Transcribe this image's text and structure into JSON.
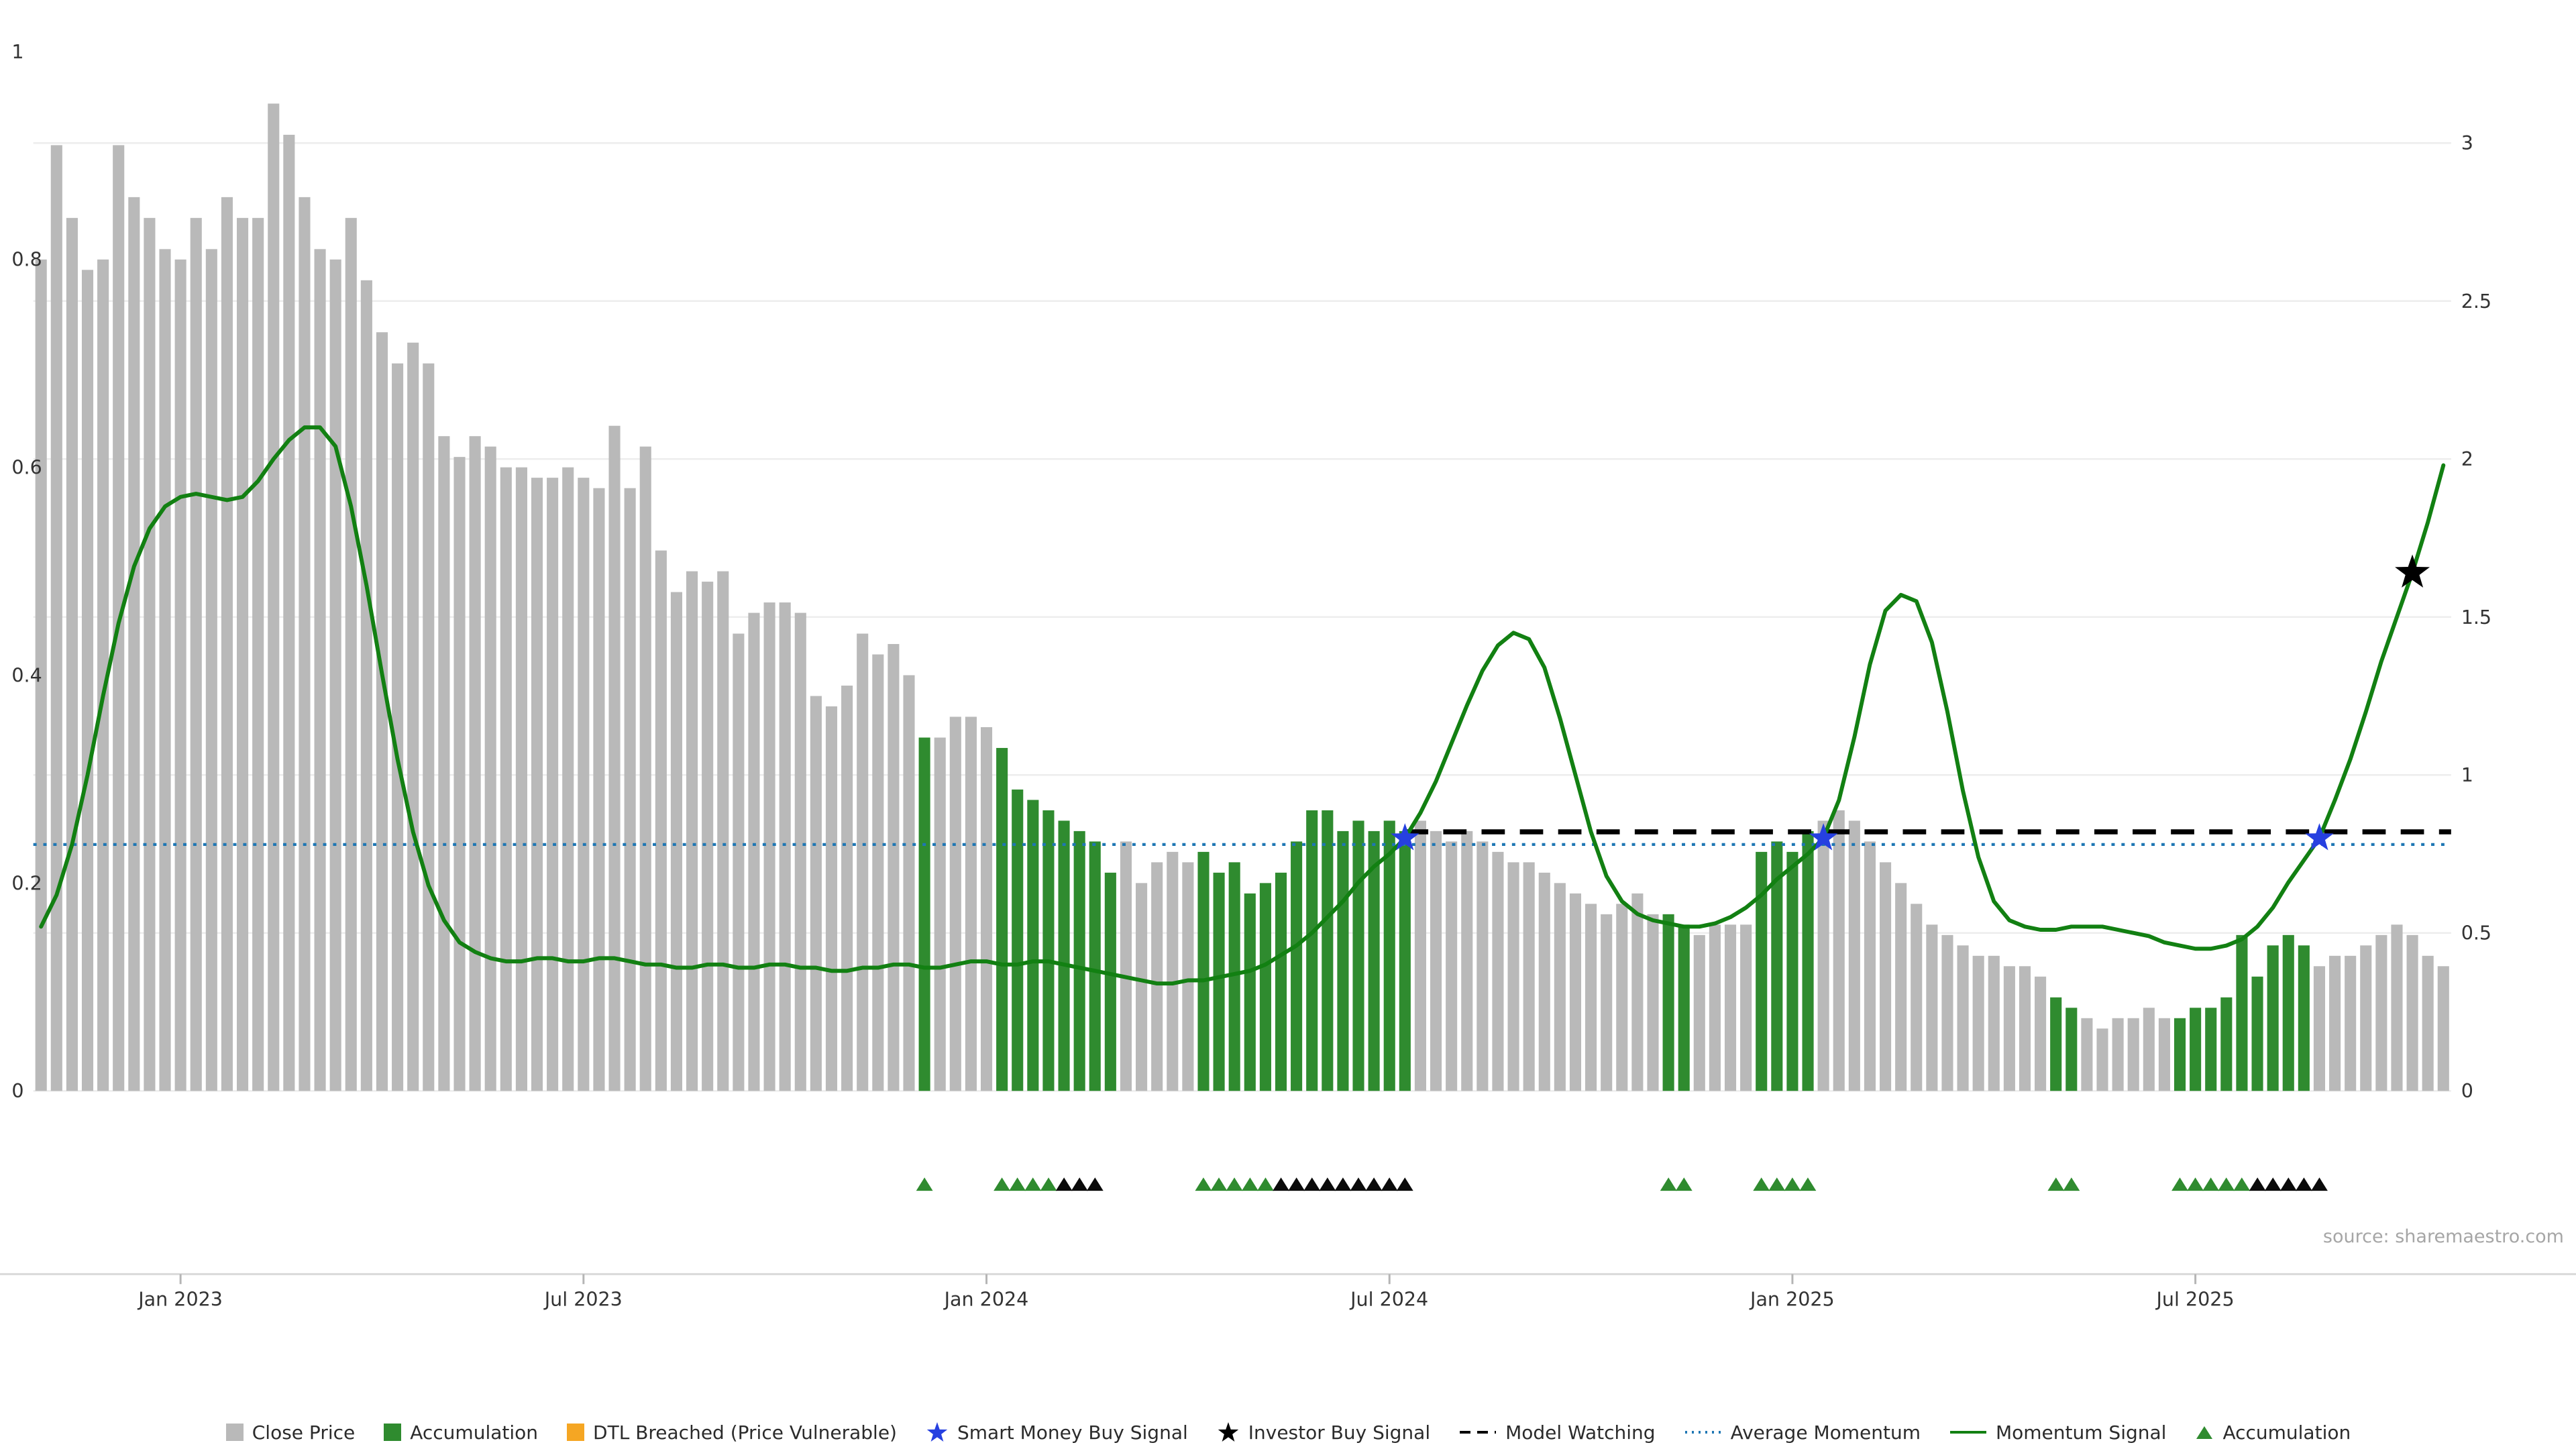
{
  "source": "source: sharemaestro.com",
  "colors": {
    "close_price": "#b9b9b9",
    "accumulation": "#2f8b2f",
    "dtl_breached": "#f5a623",
    "smart_money": "#2640e0",
    "investor": "#000000",
    "model_watching": "#000000",
    "average_momentum": "#1f77b4",
    "momentum_signal": "#128012",
    "marker_black": "#0a0a0a",
    "grid": "#ededed",
    "axis_text": "#333333",
    "axis_line": "#d8d8d8",
    "source_text": "#a6a6a6"
  },
  "legend": {
    "items": [
      {
        "label": "Close Price",
        "swatch": "square",
        "color": "#b9b9b9"
      },
      {
        "label": "Accumulation",
        "swatch": "square",
        "color": "#2f8b2f"
      },
      {
        "label": "DTL Breached (Price Vulnerable)",
        "swatch": "square",
        "color": "#f5a623"
      },
      {
        "label": "Smart Money Buy Signal",
        "swatch": "star",
        "color": "#2640e0"
      },
      {
        "label": "Investor Buy Signal",
        "swatch": "star",
        "color": "#000000"
      },
      {
        "label": "Model Watching",
        "swatch": "dashed-line",
        "color": "#000000"
      },
      {
        "label": "Average Momentum",
        "swatch": "dotted-line",
        "color": "#1f77b4"
      },
      {
        "label": "Momentum Signal",
        "swatch": "line",
        "color": "#128012"
      },
      {
        "label": "Accumulation",
        "swatch": "triangle",
        "color": "#2f8b2f"
      }
    ]
  },
  "chart_data": {
    "type": "bar+line",
    "title": "",
    "grid": "on",
    "left_axis": {
      "tick_labels": [
        "1",
        "0.8",
        "0.6",
        "0.4",
        "0.2",
        "0"
      ],
      "tick_values": [
        1,
        0.8,
        0.6,
        0.4,
        0.2,
        0
      ],
      "range": [
        0,
        1
      ]
    },
    "right_axis": {
      "tick_labels": [
        "3",
        "2.5",
        "2",
        "1.5",
        "1",
        "0.5",
        "0"
      ],
      "tick_values": [
        3,
        2.5,
        2,
        1.5,
        1,
        0.5,
        0
      ],
      "range": [
        0,
        3
      ]
    },
    "x_ticks": {
      "labels": [
        "Jan 2023",
        "Jul 2023",
        "Jan 2024",
        "Jul 2024",
        "Jan 2025",
        "Jul 2025"
      ],
      "indices": [
        9,
        35,
        61,
        87,
        113,
        139
      ]
    },
    "bars": {
      "name": "Close Price (weekly)",
      "axis": "left",
      "values": [
        0.8,
        0.91,
        0.84,
        0.79,
        0.8,
        0.91,
        0.86,
        0.84,
        0.81,
        0.8,
        0.84,
        0.81,
        0.86,
        0.84,
        0.84,
        0.95,
        0.92,
        0.86,
        0.81,
        0.8,
        0.84,
        0.78,
        0.73,
        0.7,
        0.72,
        0.7,
        0.63,
        0.61,
        0.63,
        0.62,
        0.6,
        0.6,
        0.59,
        0.59,
        0.6,
        0.59,
        0.58,
        0.64,
        0.58,
        0.62,
        0.52,
        0.48,
        0.5,
        0.49,
        0.5,
        0.44,
        0.46,
        0.47,
        0.47,
        0.46,
        0.38,
        0.37,
        0.39,
        0.44,
        0.42,
        0.43,
        0.4,
        0.34,
        0.34,
        0.36,
        0.36,
        0.35,
        0.33,
        0.29,
        0.28,
        0.27,
        0.26,
        0.25,
        0.24,
        0.21,
        0.24,
        0.2,
        0.22,
        0.23,
        0.22,
        0.23,
        0.21,
        0.22,
        0.19,
        0.2,
        0.21,
        0.24,
        0.27,
        0.27,
        0.25,
        0.26,
        0.25,
        0.26,
        0.25,
        0.26,
        0.25,
        0.24,
        0.25,
        0.24,
        0.23,
        0.22,
        0.22,
        0.21,
        0.2,
        0.19,
        0.18,
        0.17,
        0.18,
        0.19,
        0.17,
        0.17,
        0.16,
        0.15,
        0.16,
        0.16,
        0.16,
        0.23,
        0.24,
        0.23,
        0.25,
        0.26,
        0.27,
        0.26,
        0.24,
        0.22,
        0.2,
        0.18,
        0.16,
        0.15,
        0.14,
        0.13,
        0.13,
        0.12,
        0.12,
        0.11,
        0.09,
        0.08,
        0.07,
        0.06,
        0.07,
        0.07,
        0.08,
        0.07,
        0.07,
        0.08,
        0.08,
        0.09,
        0.15,
        0.11,
        0.14,
        0.15,
        0.14,
        0.12,
        0.13,
        0.13,
        0.14,
        0.15,
        0.16,
        0.15,
        0.13,
        0.12
      ],
      "accumulation_indices": [
        57,
        62,
        63,
        64,
        65,
        66,
        67,
        68,
        69,
        75,
        76,
        77,
        78,
        79,
        80,
        81,
        82,
        83,
        84,
        85,
        86,
        87,
        88,
        105,
        106,
        111,
        112,
        113,
        114,
        130,
        131,
        138,
        139,
        140,
        141,
        142,
        143,
        144,
        145,
        146
      ]
    },
    "momentum": {
      "name": "Momentum Signal",
      "axis": "right",
      "values": [
        0.52,
        0.62,
        0.78,
        1.0,
        1.25,
        1.48,
        1.66,
        1.78,
        1.85,
        1.88,
        1.89,
        1.88,
        1.87,
        1.88,
        1.93,
        2.0,
        2.06,
        2.1,
        2.1,
        2.04,
        1.85,
        1.6,
        1.32,
        1.05,
        0.82,
        0.65,
        0.54,
        0.47,
        0.44,
        0.42,
        0.41,
        0.41,
        0.42,
        0.42,
        0.41,
        0.41,
        0.42,
        0.42,
        0.41,
        0.4,
        0.4,
        0.39,
        0.39,
        0.4,
        0.4,
        0.39,
        0.39,
        0.4,
        0.4,
        0.39,
        0.39,
        0.38,
        0.38,
        0.39,
        0.39,
        0.4,
        0.4,
        0.39,
        0.39,
        0.4,
        0.41,
        0.41,
        0.4,
        0.4,
        0.41,
        0.41,
        0.4,
        0.39,
        0.38,
        0.37,
        0.36,
        0.35,
        0.34,
        0.34,
        0.35,
        0.35,
        0.36,
        0.37,
        0.38,
        0.4,
        0.43,
        0.46,
        0.5,
        0.55,
        0.6,
        0.66,
        0.71,
        0.75,
        0.8,
        0.88,
        0.98,
        1.1,
        1.22,
        1.33,
        1.41,
        1.45,
        1.43,
        1.34,
        1.18,
        1.0,
        0.82,
        0.68,
        0.6,
        0.56,
        0.54,
        0.53,
        0.52,
        0.52,
        0.53,
        0.55,
        0.58,
        0.62,
        0.67,
        0.71,
        0.75,
        0.8,
        0.92,
        1.12,
        1.35,
        1.52,
        1.57,
        1.55,
        1.42,
        1.2,
        0.95,
        0.74,
        0.6,
        0.54,
        0.52,
        0.51,
        0.51,
        0.52,
        0.52,
        0.52,
        0.51,
        0.5,
        0.49,
        0.47,
        0.46,
        0.45,
        0.45,
        0.46,
        0.48,
        0.52,
        0.58,
        0.66,
        0.73,
        0.8,
        0.92,
        1.05,
        1.2,
        1.36,
        1.5,
        1.64,
        1.8,
        1.98
      ]
    },
    "average_momentum": {
      "name": "Average Momentum",
      "axis": "right",
      "value": 0.78
    },
    "model_watching": {
      "name": "Model Watching",
      "axis": "right",
      "value": 0.82,
      "start_index": 88
    },
    "smart_money_buy_signals": [
      {
        "index": 88,
        "value": 0.8
      },
      {
        "index": 115,
        "value": 0.8
      },
      {
        "index": 147,
        "value": 0.8
      }
    ],
    "investor_buy_signals": [
      {
        "index": 153,
        "value": 1.64
      }
    ],
    "accumulation_markers": {
      "green_indices": [
        57,
        62,
        63,
        64,
        65,
        75,
        76,
        77,
        78,
        79,
        105,
        106,
        111,
        112,
        113,
        114,
        130,
        131,
        138,
        139,
        140,
        141,
        142
      ],
      "black_indices": [
        66,
        67,
        68,
        80,
        81,
        82,
        83,
        84,
        85,
        86,
        87,
        88,
        143,
        144,
        145,
        146,
        147
      ]
    }
  }
}
